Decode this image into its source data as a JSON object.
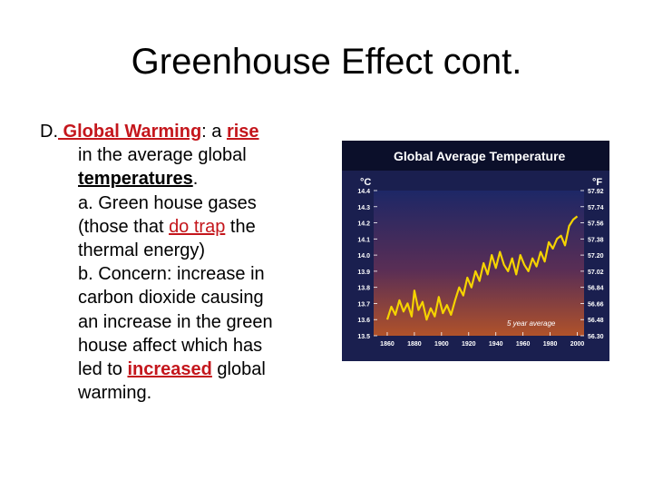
{
  "slide": {
    "title": "Greenhouse Effect cont.",
    "p1": {
      "lead": "D.",
      "term": " Global Warming",
      "sep": ": a ",
      "rise": "rise",
      "l2": "in the average global",
      "temps": "temperatures",
      "period": "."
    },
    "a": {
      "l1": "a. Green house gases",
      "l2a": "(those that ",
      "trap": "do trap",
      "l2b": " the",
      "l3": "thermal energy)"
    },
    "b": {
      "l1": "b.  Concern: increase in",
      "l2": "carbon dioxide causing",
      "l3": "an increase in the green",
      "l4": "house affect which has",
      "l5a": "led to ",
      "increased": "increased",
      "l5b": " global",
      "l6": "warming."
    }
  },
  "colors": {
    "accent": "#c4161c",
    "chart_bg": "#1f2d6e",
    "chart_line": "#f5d300"
  },
  "chart_data": {
    "type": "line",
    "title": "Global Average Temperature",
    "ylabel_left": "°C",
    "ylabel_right": "°F",
    "xlim": [
      1850,
      2005
    ],
    "ylim": [
      13.5,
      14.4
    ],
    "x_ticks": [
      1860,
      1880,
      1900,
      1920,
      1940,
      1960,
      1980,
      2000
    ],
    "y_ticks_c": [
      "14.4",
      "14.3",
      "14.2",
      "14.1",
      "14.0",
      "13.9",
      "13.8",
      "13.7",
      "13.6",
      "13.5"
    ],
    "y_ticks_f": [
      "57.92",
      "57.74",
      "57.56",
      "57.38",
      "57.20",
      "57.02",
      "56.84",
      "56.66",
      "56.48",
      "56.30"
    ],
    "annotation": "5 year average",
    "series": [
      {
        "x": [
          1860,
          1863,
          1866,
          1869,
          1872,
          1875,
          1878,
          1880,
          1883,
          1886,
          1889,
          1892,
          1895,
          1898,
          1901,
          1904,
          1907,
          1910,
          1913,
          1916,
          1919,
          1922,
          1925,
          1928,
          1931,
          1934,
          1937,
          1940,
          1943,
          1946,
          1949,
          1952,
          1955,
          1958,
          1961,
          1964,
          1967,
          1970,
          1973,
          1976,
          1979,
          1982,
          1985,
          1988,
          1991,
          1994,
          1997,
          2000
        ],
        "y": [
          13.6,
          13.68,
          13.63,
          13.72,
          13.65,
          13.7,
          13.62,
          13.78,
          13.66,
          13.71,
          13.6,
          13.67,
          13.62,
          13.74,
          13.64,
          13.69,
          13.63,
          13.72,
          13.8,
          13.75,
          13.86,
          13.8,
          13.9,
          13.84,
          13.95,
          13.88,
          14.0,
          13.92,
          14.02,
          13.94,
          13.9,
          13.98,
          13.88,
          14.0,
          13.94,
          13.9,
          13.98,
          13.93,
          14.02,
          13.96,
          14.08,
          14.04,
          14.1,
          14.12,
          14.06,
          14.18,
          14.22,
          14.24
        ]
      }
    ]
  }
}
